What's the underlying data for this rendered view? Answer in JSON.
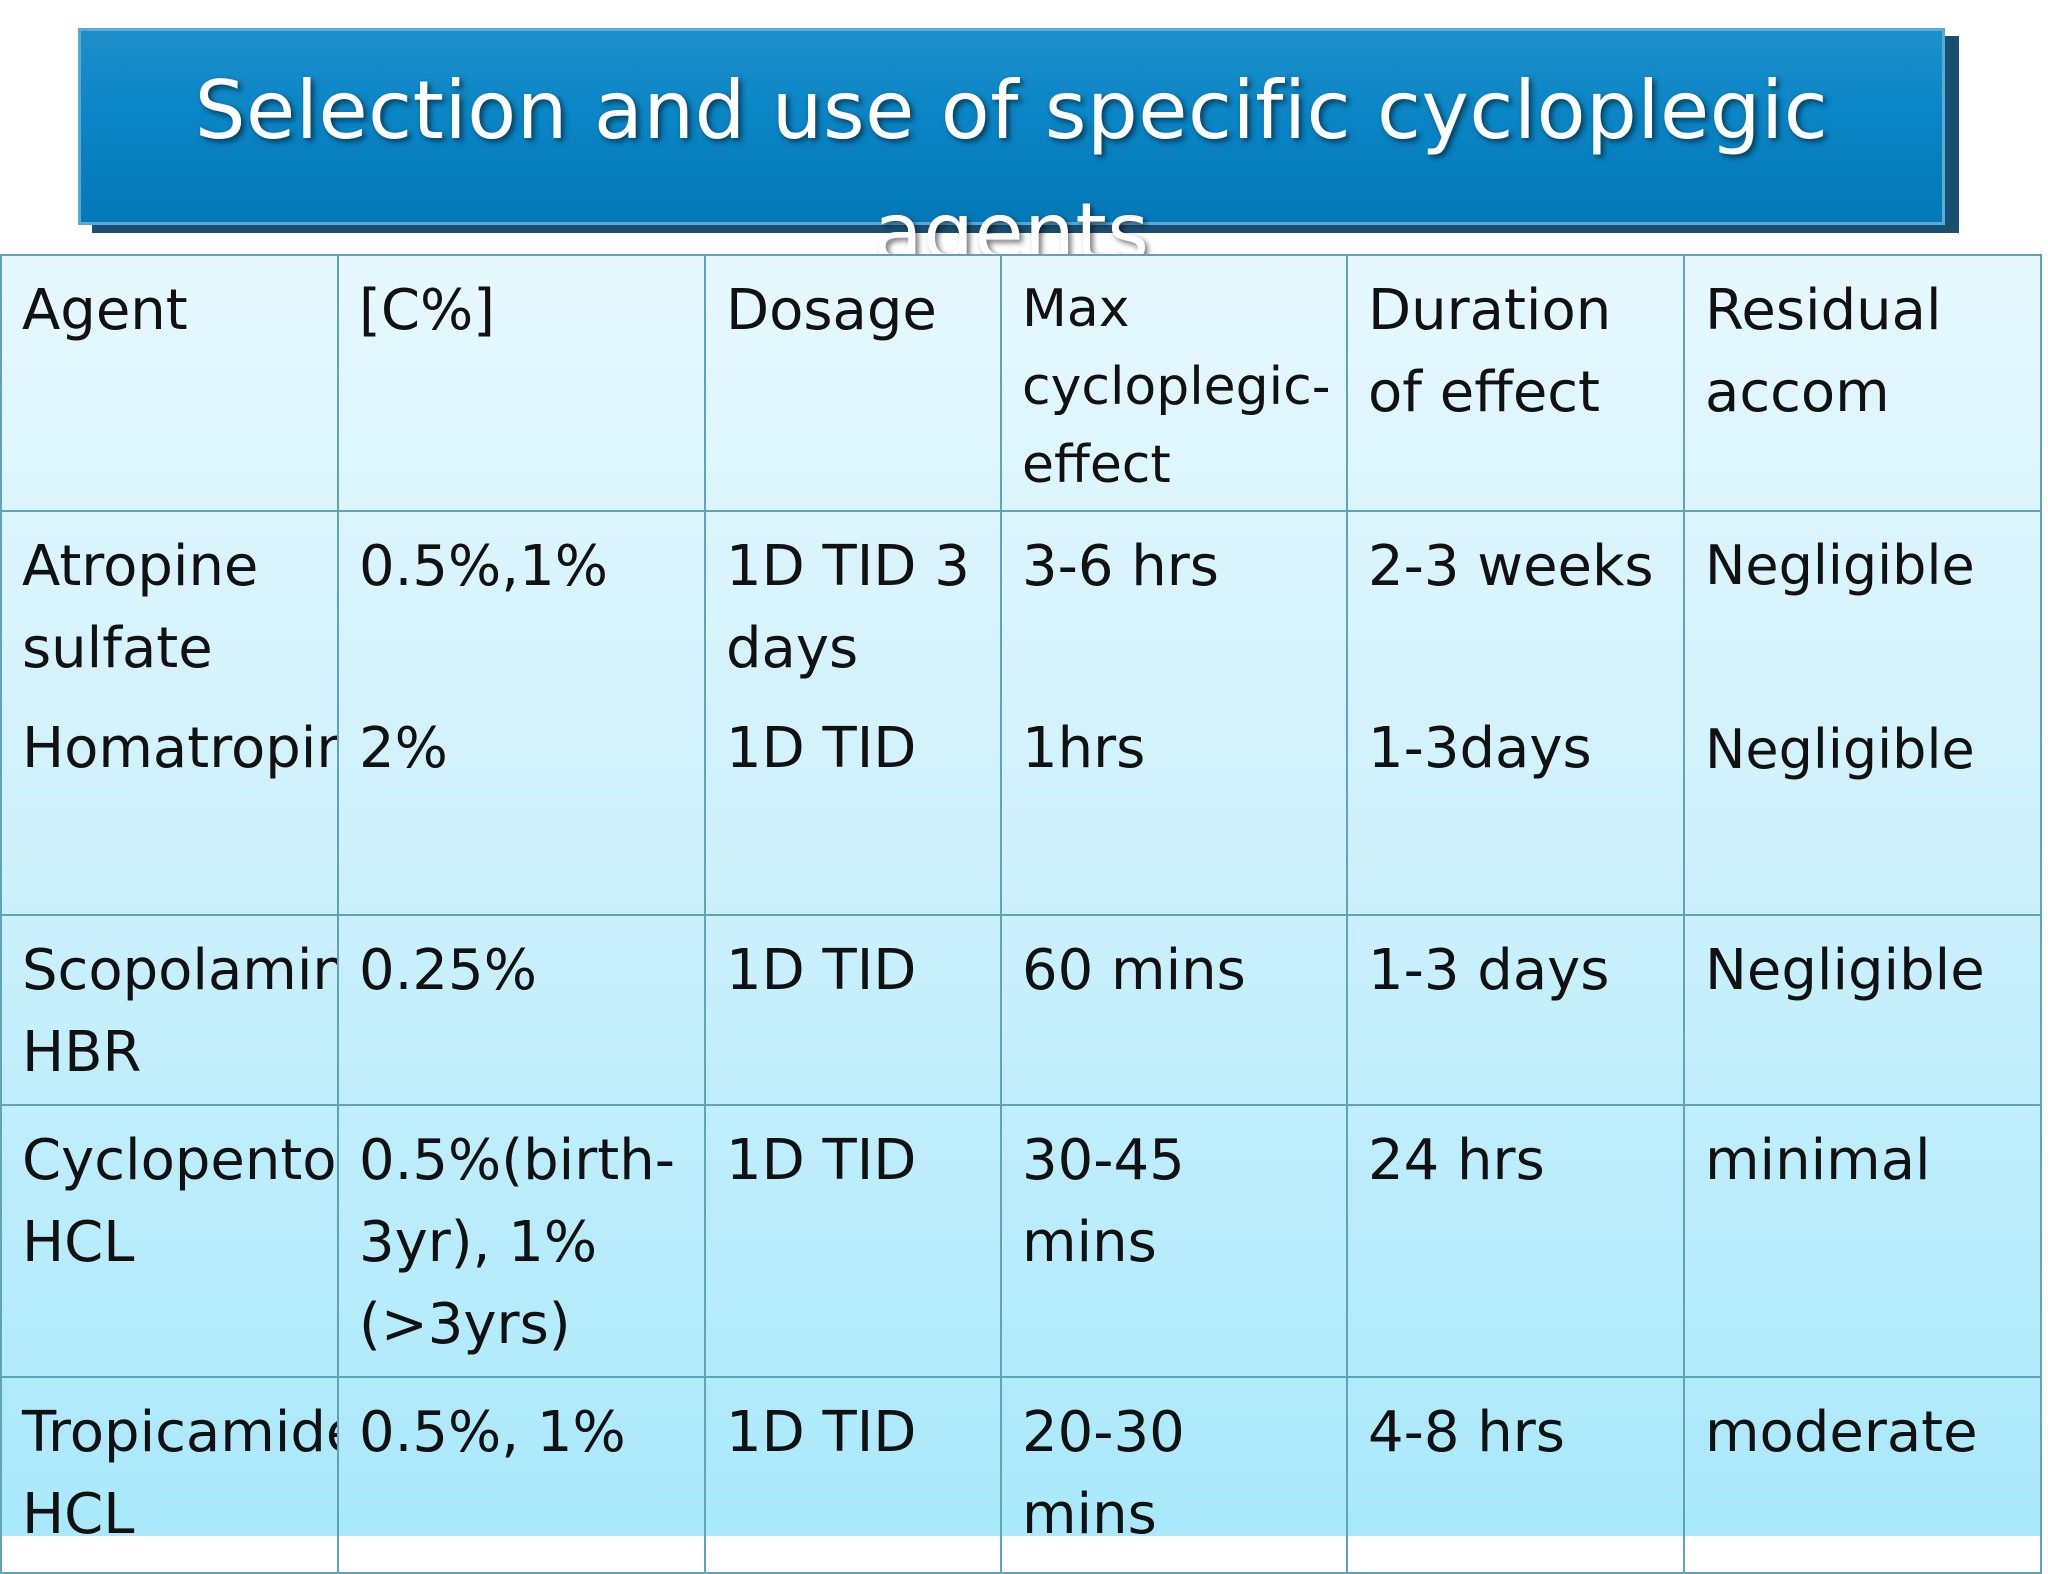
{
  "title": "Selection and use of specific cycloplegic agents",
  "table": {
    "headers": [
      "Agent",
      "[C%]",
      "Dosage",
      "Max cycloplegic-effect",
      "Duration of effect",
      "Residual accom"
    ],
    "rows": [
      {
        "agent_a": "Atropine sulfate",
        "agent_b": "Homatropine",
        "conc_a": "0.5%,1%",
        "conc_b": "2%",
        "dosage_a": "1D TID  3 days",
        "dosage_b": "1D TID",
        "max_a": "3-6 hrs",
        "max_b": "1hrs",
        "duration_a": "2-3 weeks",
        "duration_b": "1-3days",
        "residual_a": "Negligible",
        "residual_b": "Negligible"
      },
      {
        "agent": "Scopolamine HBR",
        "conc": "0.25%",
        "dosage": "1D TID",
        "max": "60 mins",
        "duration": "1-3 days",
        "residual": "Negligible"
      },
      {
        "agent": "Cyclopentolate HCL",
        "conc": "0.5%(birth-3yr), 1%(>3yrs)",
        "dosage": "1D TID",
        "max": "30-45 mins",
        "duration": "24 hrs",
        "residual": "minimal"
      },
      {
        "agent": "Tropicamide HCL",
        "conc": "0.5%, 1%",
        "dosage": "1D TID",
        "max": "20-30 mins",
        "duration": "4-8 hrs",
        "residual": "moderate"
      }
    ]
  }
}
